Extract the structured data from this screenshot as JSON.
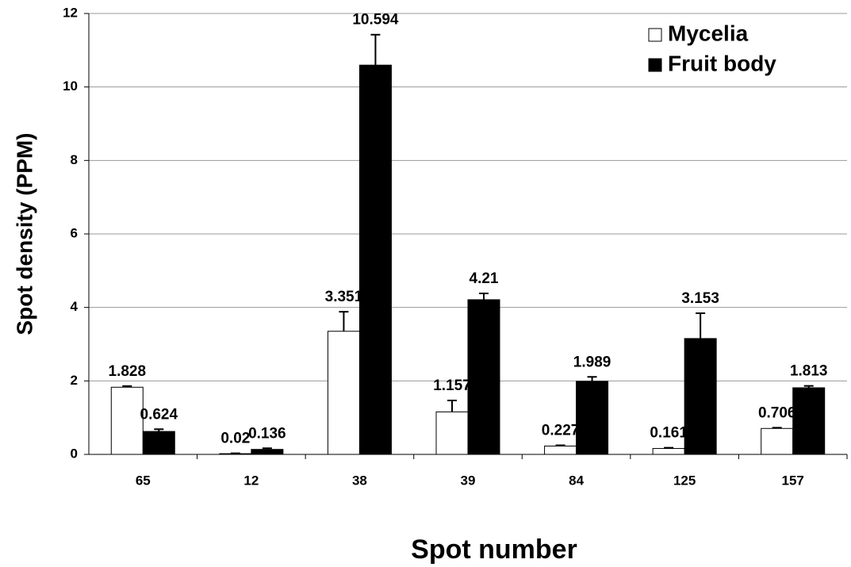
{
  "chart_data": {
    "type": "bar",
    "x_label": "Spot number",
    "y_label": "Spot density (PPM)",
    "categories": [
      "65",
      "12",
      "38",
      "39",
      "84",
      "125",
      "157"
    ],
    "series": [
      {
        "name": "Mycelia",
        "color": "#ffffff",
        "values": [
          1.828,
          0.02,
          3.351,
          1.157,
          0.227,
          0.161,
          0.706
        ],
        "errors": [
          0.03,
          0.01,
          0.53,
          0.31,
          0.02,
          0.02,
          0.02
        ]
      },
      {
        "name": "Fruit body",
        "color": "#000000",
        "values": [
          0.624,
          0.136,
          10.594,
          4.21,
          1.989,
          3.153,
          1.813
        ],
        "errors": [
          0.06,
          0.03,
          0.83,
          0.17,
          0.12,
          0.69,
          0.05
        ]
      }
    ],
    "ylim": [
      0,
      12
    ],
    "yticks": [
      0,
      2,
      4,
      6,
      8,
      10,
      12
    ],
    "grid": true,
    "legend": "top-right"
  }
}
